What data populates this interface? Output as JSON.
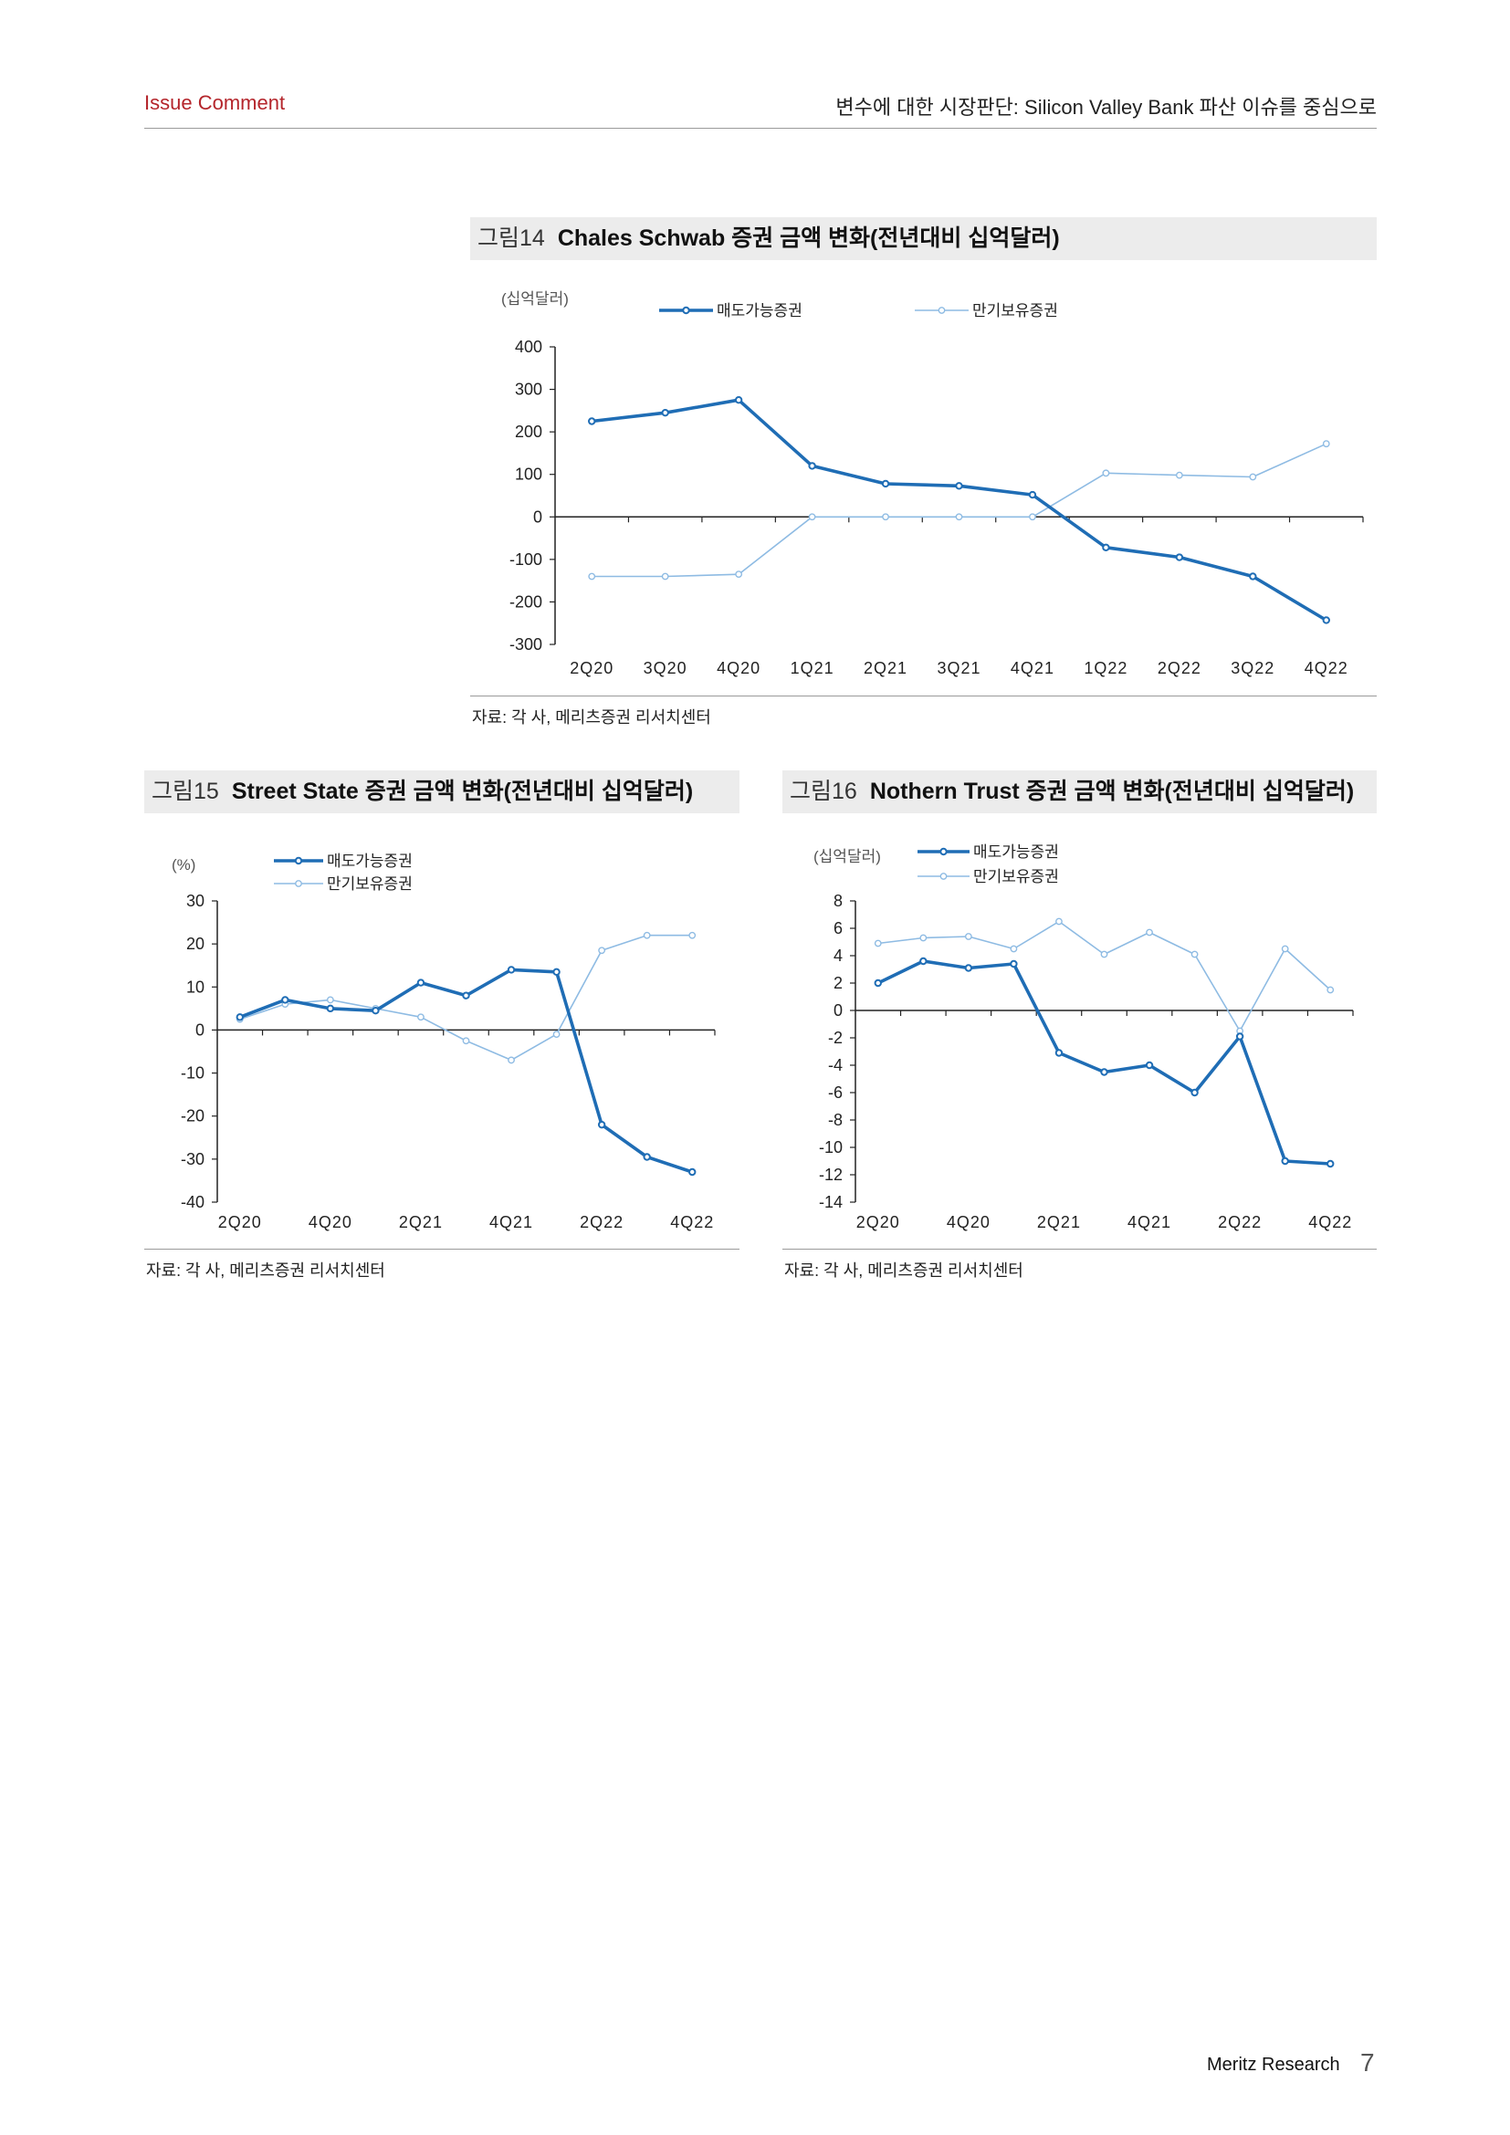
{
  "header": {
    "left": "Issue Comment",
    "right": "변수에 대한 시장판단: Silicon Valley Bank 파산 이슈를 중심으로"
  },
  "figures": [
    {
      "number": "그림14",
      "title": "Chales Schwab 증권 금액 변화(전년대비 십억달러)",
      "source": "자료: 각 사, 메리츠증권 리서치센터"
    },
    {
      "number": "그림15",
      "title": "Street State 증권 금액 변화(전년대비 십억달러)",
      "source": "자료: 각 사, 메리츠증권 리서치센터"
    },
    {
      "number": "그림16",
      "title": "Nothern Trust 증권 금액 변화(전년대비 십억달러)",
      "source": "자료: 각 사, 메리츠증권 리서치센터"
    }
  ],
  "footer": {
    "brand": "Meritz Research",
    "page": "7"
  },
  "colors": {
    "series1": "#1f6db5",
    "series2": "#8ebbe3",
    "accent": "#b4252b"
  },
  "chart_data": [
    {
      "type": "line",
      "title": "Chales Schwab 증권 금액 변화(전년대비 십억달러)",
      "unit_label": "(십억달러)",
      "categories": [
        "2Q20",
        "3Q20",
        "4Q20",
        "1Q21",
        "2Q21",
        "3Q21",
        "4Q21",
        "1Q22",
        "2Q22",
        "3Q22",
        "4Q22"
      ],
      "ylim": [
        -300,
        400
      ],
      "yticks": [
        400,
        300,
        200,
        100,
        0,
        -100,
        -200,
        -300
      ],
      "legend": "top",
      "series": [
        {
          "name": "매도가능증권",
          "values": [
            225,
            245,
            275,
            120,
            78,
            73,
            52,
            -72,
            -95,
            -140,
            -243
          ]
        },
        {
          "name": "만기보유증권",
          "values": [
            -140,
            -140,
            -135,
            0,
            0,
            0,
            0,
            103,
            98,
            94,
            172
          ]
        }
      ]
    },
    {
      "type": "line",
      "title": "Street State 증권 금액 변화(전년대비 십억달러)",
      "unit_label": "(%)",
      "categories": [
        "2Q20",
        "3Q20",
        "4Q20",
        "1Q21",
        "2Q21",
        "3Q21",
        "4Q21",
        "1Q22",
        "2Q22",
        "3Q22",
        "4Q22"
      ],
      "xtick_labels": [
        "2Q20",
        "4Q20",
        "2Q21",
        "4Q21",
        "2Q22",
        "4Q22"
      ],
      "ylim": [
        -40,
        30
      ],
      "yticks": [
        30,
        20,
        10,
        0,
        -10,
        -20,
        -30,
        -40
      ],
      "legend": "top-left",
      "series": [
        {
          "name": "매도가능증권",
          "values": [
            3,
            7,
            5,
            4.5,
            11,
            8,
            14,
            13.5,
            -22,
            -29.5,
            -33
          ]
        },
        {
          "name": "만기보유증권",
          "values": [
            2.5,
            6,
            7,
            5,
            3,
            -2.5,
            -7,
            -1,
            18.5,
            22,
            22
          ]
        }
      ]
    },
    {
      "type": "line",
      "title": "Nothern Trust 증권 금액 변화(전년대비 십억달러)",
      "unit_label": "(십억달러)",
      "categories": [
        "2Q20",
        "3Q20",
        "4Q20",
        "1Q21",
        "2Q21",
        "3Q21",
        "4Q21",
        "1Q22",
        "2Q22",
        "3Q22",
        "4Q22"
      ],
      "xtick_labels": [
        "2Q20",
        "4Q20",
        "2Q21",
        "4Q21",
        "2Q22",
        "4Q22"
      ],
      "ylim": [
        -14,
        8
      ],
      "yticks": [
        8,
        6,
        4,
        2,
        0,
        -2,
        -4,
        -6,
        -8,
        -10,
        -12,
        -14
      ],
      "legend": "top",
      "series": [
        {
          "name": "매도가능증권",
          "values": [
            2,
            3.6,
            3.1,
            3.4,
            -3.1,
            -4.5,
            -4,
            -6,
            -1.9,
            -11,
            -11.2
          ]
        },
        {
          "name": "만기보유증권",
          "values": [
            4.9,
            5.3,
            5.4,
            4.5,
            6.5,
            4.1,
            5.7,
            4.1,
            -1.5,
            4.5,
            1.5
          ]
        }
      ]
    }
  ]
}
